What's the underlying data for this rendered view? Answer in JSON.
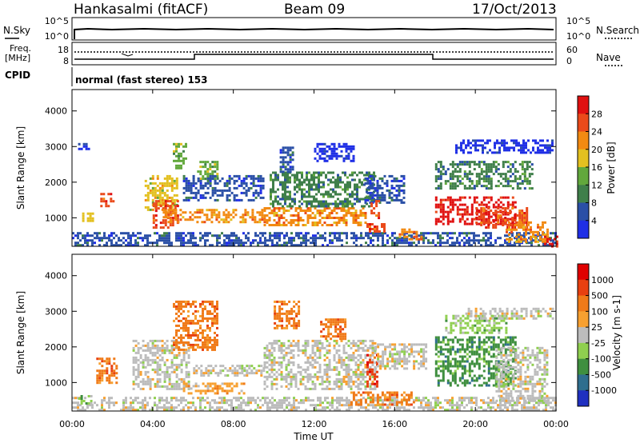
{
  "header": {
    "station": "Hankasalmi (fitACF)",
    "beam": "Beam 09",
    "date": "17/Oct/2013"
  },
  "noise_panel": {
    "left_label": "N.Sky",
    "right_label": "N.Search",
    "tick_top": "10^5",
    "tick_bottom": "10^0"
  },
  "freq_panel": {
    "left_label_1": "Freq.",
    "left_label_2": "[MHz]",
    "left_tick_top": "18",
    "left_tick_bottom": "8",
    "right_label": "Nave",
    "right_tick_top": "60",
    "right_tick_bottom": "0",
    "cpid_label": "CPID",
    "cpid_text": "normal (fast stereo) 153"
  },
  "chart_data": [
    {
      "type": "heatmap",
      "name": "power",
      "ylabel": "Slant Range [km]",
      "yticks": [
        "1000",
        "2000",
        "3000",
        "4000"
      ],
      "ylim": [
        200,
        4600
      ],
      "xlim": [
        0,
        24
      ],
      "colorbar_label": "Power [dB]",
      "colorbar_ticks": [
        "4",
        "8",
        "12",
        "16",
        "20",
        "24",
        "28"
      ],
      "colors": [
        "#1f2fe6",
        "#2a4fa6",
        "#3f7f4a",
        "#62a83c",
        "#e3c020",
        "#f28a12",
        "#ea4a1a",
        "#e01010"
      ],
      "bands": [
        {
          "t0": 0.0,
          "t1": 24.0,
          "r0": 250,
          "r1": 600,
          "level": 1
        },
        {
          "t0": 0.3,
          "t1": 1.0,
          "r0": 2900,
          "r1": 3100,
          "level": 0
        },
        {
          "t0": 0.5,
          "t1": 1.0,
          "r0": 900,
          "r1": 1150,
          "level": 4
        },
        {
          "t0": 1.4,
          "t1": 2.0,
          "r0": 1300,
          "r1": 1700,
          "level": 6
        },
        {
          "t0": 3.6,
          "t1": 5.2,
          "r0": 1200,
          "r1": 2200,
          "level": 4
        },
        {
          "t0": 4.0,
          "t1": 5.2,
          "r0": 700,
          "r1": 1500,
          "level": 6
        },
        {
          "t0": 5.0,
          "t1": 5.6,
          "r0": 2400,
          "r1": 3100,
          "level": 3
        },
        {
          "t0": 6.2,
          "t1": 7.2,
          "r0": 2100,
          "r1": 2600,
          "level": 3
        },
        {
          "t0": 4.5,
          "t1": 9.5,
          "r0": 900,
          "r1": 1250,
          "level": 5
        },
        {
          "t0": 5.5,
          "t1": 9.5,
          "r0": 1500,
          "r1": 2200,
          "level": 1
        },
        {
          "t0": 9.5,
          "t1": 14.5,
          "r0": 800,
          "r1": 1300,
          "level": 5
        },
        {
          "t0": 9.8,
          "t1": 15.0,
          "r0": 1300,
          "r1": 2300,
          "level": 2
        },
        {
          "t0": 10.3,
          "t1": 11.0,
          "r0": 2300,
          "r1": 3000,
          "level": 1
        },
        {
          "t0": 12.0,
          "t1": 14.0,
          "r0": 2600,
          "r1": 3100,
          "level": 0
        },
        {
          "t0": 14.5,
          "t1": 16.5,
          "r0": 1400,
          "r1": 2200,
          "level": 1
        },
        {
          "t0": 14.6,
          "t1": 15.5,
          "r0": 600,
          "r1": 850,
          "level": 6
        },
        {
          "t0": 16.2,
          "t1": 17.3,
          "r0": 400,
          "r1": 700,
          "level": 5
        },
        {
          "t0": 14.8,
          "t1": 15.2,
          "r0": 1000,
          "r1": 1500,
          "level": 6
        },
        {
          "t0": 18.0,
          "t1": 22.8,
          "r0": 1800,
          "r1": 2600,
          "level": 2
        },
        {
          "t0": 18.0,
          "t1": 22.0,
          "r0": 800,
          "r1": 1600,
          "level": 7
        },
        {
          "t0": 20.0,
          "t1": 22.6,
          "r0": 700,
          "r1": 1300,
          "level": 6
        },
        {
          "t0": 21.5,
          "t1": 23.6,
          "r0": 300,
          "r1": 900,
          "level": 5
        },
        {
          "t0": 19.0,
          "t1": 23.8,
          "r0": 2800,
          "r1": 3200,
          "level": 0
        },
        {
          "t0": 23.4,
          "t1": 24.0,
          "r0": 200,
          "r1": 500,
          "level": 7
        }
      ]
    },
    {
      "type": "heatmap",
      "name": "velocity",
      "ylabel": "Slant Range [km]",
      "yticks": [
        "1000",
        "2000",
        "3000",
        "4000"
      ],
      "ylim": [
        200,
        4600
      ],
      "xlim": [
        0,
        24
      ],
      "colorbar_label": "Velocity [m s-1]",
      "colorbar_ticks": [
        "1000",
        "500",
        "100",
        "25",
        "-25",
        "-100",
        "-500",
        "-1000"
      ],
      "colors": [
        "#2030c0",
        "#2f6e8e",
        "#3f8f3f",
        "#8fcf4f",
        "#bcbcbc",
        "#f7a030",
        "#f07a18",
        "#e84010",
        "#e00000"
      ],
      "bands": [
        {
          "t0": 0.0,
          "t1": 24.0,
          "r0": 250,
          "r1": 600,
          "level": 4
        },
        {
          "t0": 0.3,
          "t1": 0.9,
          "r0": 400,
          "r1": 650,
          "level": 3
        },
        {
          "t0": 1.2,
          "t1": 2.2,
          "r0": 1000,
          "r1": 1700,
          "level": 6
        },
        {
          "t0": 3.0,
          "t1": 5.8,
          "r0": 800,
          "r1": 2200,
          "level": 4
        },
        {
          "t0": 5.0,
          "t1": 7.2,
          "r0": 1900,
          "r1": 3300,
          "level": 6
        },
        {
          "t0": 6.0,
          "t1": 9.5,
          "r0": 1200,
          "r1": 1500,
          "level": 4
        },
        {
          "t0": 5.5,
          "t1": 8.5,
          "r0": 700,
          "r1": 1000,
          "level": 5
        },
        {
          "t0": 9.5,
          "t1": 15.0,
          "r0": 800,
          "r1": 2200,
          "level": 4
        },
        {
          "t0": 10.0,
          "t1": 11.2,
          "r0": 2500,
          "r1": 3300,
          "level": 6
        },
        {
          "t0": 12.3,
          "t1": 13.5,
          "r0": 2200,
          "r1": 2800,
          "level": 6
        },
        {
          "t0": 14.6,
          "t1": 15.1,
          "r0": 900,
          "r1": 1800,
          "level": 7
        },
        {
          "t0": 13.8,
          "t1": 17.0,
          "r0": 350,
          "r1": 750,
          "level": 6
        },
        {
          "t0": 15.0,
          "t1": 17.5,
          "r0": 1400,
          "r1": 2100,
          "level": 4
        },
        {
          "t0": 18.0,
          "t1": 22.0,
          "r0": 900,
          "r1": 2300,
          "level": 2
        },
        {
          "t0": 18.5,
          "t1": 21.5,
          "r0": 2400,
          "r1": 2900,
          "level": 3
        },
        {
          "t0": 21.0,
          "t1": 23.5,
          "r0": 500,
          "r1": 2000,
          "level": 4
        },
        {
          "t0": 19.5,
          "t1": 23.8,
          "r0": 2800,
          "r1": 3100,
          "level": 4
        }
      ]
    }
  ],
  "xaxis": {
    "ticks": [
      "00:00",
      "04:00",
      "08:00",
      "12:00",
      "16:00",
      "20:00",
      "00:00"
    ],
    "label": "Time UT"
  }
}
